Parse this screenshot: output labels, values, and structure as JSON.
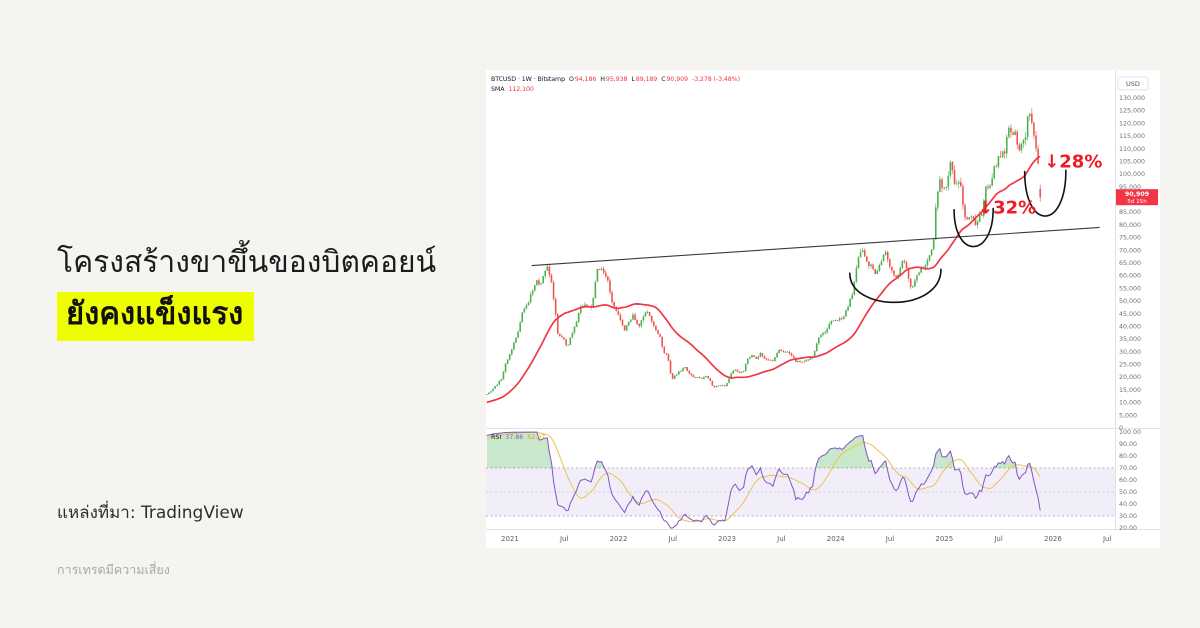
{
  "page": {
    "background": "#f5f4f1"
  },
  "left_panel": {
    "headline_line1": "โครงสร้างขาขึ้นของบิตคอยน์",
    "headline_line2": "ยังคงแข็งแรง",
    "highlight_color": "#ecfe00",
    "source_label": "แหล่งที่มา: TradingView",
    "disclaimer": "การเทรดมีความเสี่ยง"
  },
  "chart": {
    "header": {
      "symbol_line": "BTCUSD · 1W · Bitstamp",
      "o_label": "O",
      "o": "94,186",
      "h_label": "H",
      "h": "95,938",
      "l_label": "L",
      "l": "89,189",
      "c_label": "C",
      "c": "90,909",
      "change": "-3,278 (-3.48%)",
      "sma_label": "SMA",
      "sma_value": "112,100"
    },
    "rsi_legend": {
      "label": "RSI",
      "value1": "37.86",
      "value2": "52.97"
    }
  },
  "chart_data": {
    "type": "candlestick",
    "symbol": "BTCUSD",
    "interval": "1W",
    "exchange": "Bitstamp",
    "title": "BTCUSD weekly with SMA, trendline, drawdown arcs and RSI",
    "time_range": [
      2020.78,
      2026.57
    ],
    "price_axis": {
      "currency": "USD",
      "min": 0,
      "max": 133000,
      "step": 5000,
      "tick_labels": [
        "130,000",
        "125,000",
        "120,000",
        "115,000",
        "110,000",
        "105,000",
        "100,000",
        "95,000",
        "90,000",
        "85,000",
        "80,000",
        "75,000",
        "70,000",
        "65,000",
        "60,000",
        "55,000",
        "50,000",
        "45,000",
        "40,000",
        "35,000",
        "30,000",
        "25,000",
        "20,000",
        "15,000",
        "10,000",
        "5,000",
        "0"
      ]
    },
    "rsi_axis": {
      "min": 20,
      "max": 100,
      "tick_labels": [
        "100.00",
        "90.00",
        "80.00",
        "70.00",
        "60.00",
        "50.00",
        "40.00",
        "30.00",
        "20.00"
      ],
      "bands": [
        70,
        50,
        30
      ]
    },
    "time_axis": [
      {
        "label": "2021",
        "t": 2021
      },
      {
        "label": "Jul",
        "t": 2021.5
      },
      {
        "label": "2022",
        "t": 2022
      },
      {
        "label": "Jul",
        "t": 2022.5
      },
      {
        "label": "2023",
        "t": 2023
      },
      {
        "label": "Jul",
        "t": 2023.5
      },
      {
        "label": "2024",
        "t": 2024
      },
      {
        "label": "Jul",
        "t": 2024.5
      },
      {
        "label": "2025",
        "t": 2025
      },
      {
        "label": "Jul",
        "t": 2025.5
      },
      {
        "label": "2026",
        "t": 2026
      },
      {
        "label": "Jul",
        "t": 2026.5
      }
    ],
    "last_price": 90909,
    "last_bar": {
      "open": 94186,
      "high": 95938,
      "low": 89189,
      "close": 90909
    },
    "price_tag": {
      "price": "90,909",
      "countdown": "5d 15h"
    },
    "sma_period": 30,
    "rsi": {
      "period": 14,
      "ma_period": 14,
      "last": 37.86,
      "ma_last": 52.97
    },
    "price_anchors": [
      [
        2020.2,
        6900
      ],
      [
        2020.3,
        8800
      ],
      [
        2020.4,
        8700
      ],
      [
        2020.5,
        9150
      ],
      [
        2020.58,
        10700
      ],
      [
        2020.66,
        11500
      ],
      [
        2020.74,
        13000
      ],
      [
        2020.8,
        13600
      ],
      [
        2020.86,
        16200
      ],
      [
        2020.92,
        19200
      ],
      [
        2020.97,
        26500
      ],
      [
        2021.0,
        29000
      ],
      [
        2021.04,
        33900
      ],
      [
        2021.08,
        38200
      ],
      [
        2021.12,
        47000
      ],
      [
        2021.16,
        48500
      ],
      [
        2021.2,
        54000
      ],
      [
        2021.24,
        57500
      ],
      [
        2021.28,
        57000
      ],
      [
        2021.32,
        61500
      ],
      [
        2021.34,
        63500
      ],
      [
        2021.38,
        58000
      ],
      [
        2021.41,
        49000
      ],
      [
        2021.44,
        37000
      ],
      [
        2021.47,
        35600
      ],
      [
        2021.5,
        34700
      ],
      [
        2021.53,
        31800
      ],
      [
        2021.56,
        35700
      ],
      [
        2021.6,
        39900
      ],
      [
        2021.64,
        47000
      ],
      [
        2021.68,
        48800
      ],
      [
        2021.72,
        47100
      ],
      [
        2021.76,
        48100
      ],
      [
        2021.8,
        61300
      ],
      [
        2021.84,
        64300
      ],
      [
        2021.87,
        59700
      ],
      [
        2021.91,
        57300
      ],
      [
        2021.94,
        49300
      ],
      [
        2021.98,
        46300
      ],
      [
        2022.02,
        41700
      ],
      [
        2022.06,
        38500
      ],
      [
        2022.1,
        42400
      ],
      [
        2022.14,
        44500
      ],
      [
        2022.18,
        39700
      ],
      [
        2022.22,
        43200
      ],
      [
        2022.26,
        46800
      ],
      [
        2022.3,
        42300
      ],
      [
        2022.34,
        39500
      ],
      [
        2022.38,
        36000
      ],
      [
        2022.42,
        29500
      ],
      [
        2022.45,
        29000
      ],
      [
        2022.49,
        19000
      ],
      [
        2022.53,
        21200
      ],
      [
        2022.57,
        22500
      ],
      [
        2022.61,
        24400
      ],
      [
        2022.65,
        21300
      ],
      [
        2022.69,
        20000
      ],
      [
        2022.73,
        19800
      ],
      [
        2022.77,
        19600
      ],
      [
        2022.81,
        20300
      ],
      [
        2022.84,
        19100
      ],
      [
        2022.87,
        16300
      ],
      [
        2022.91,
        16500
      ],
      [
        2022.95,
        16900
      ],
      [
        2022.99,
        16600
      ],
      [
        2023.03,
        21100
      ],
      [
        2023.07,
        23300
      ],
      [
        2023.11,
        21800
      ],
      [
        2023.15,
        22400
      ],
      [
        2023.19,
        27500
      ],
      [
        2023.23,
        28500
      ],
      [
        2023.27,
        27600
      ],
      [
        2023.31,
        29500
      ],
      [
        2023.35,
        26900
      ],
      [
        2023.39,
        27200
      ],
      [
        2023.43,
        26500
      ],
      [
        2023.47,
        30700
      ],
      [
        2023.51,
        30300
      ],
      [
        2023.55,
        29900
      ],
      [
        2023.59,
        29200
      ],
      [
        2023.63,
        26100
      ],
      [
        2023.67,
        26000
      ],
      [
        2023.71,
        26600
      ],
      [
        2023.75,
        27000
      ],
      [
        2023.79,
        27900
      ],
      [
        2023.83,
        34200
      ],
      [
        2023.87,
        37100
      ],
      [
        2023.91,
        37700
      ],
      [
        2023.95,
        41300
      ],
      [
        2023.99,
        42600
      ],
      [
        2024.03,
        42900
      ],
      [
        2024.07,
        43100
      ],
      [
        2024.11,
        47700
      ],
      [
        2024.15,
        52100
      ],
      [
        2024.19,
        62500
      ],
      [
        2024.22,
        68300
      ],
      [
        2024.25,
        69400
      ],
      [
        2024.28,
        67200
      ],
      [
        2024.31,
        64000
      ],
      [
        2024.34,
        63800
      ],
      [
        2024.37,
        60600
      ],
      [
        2024.4,
        63900
      ],
      [
        2024.43,
        67000
      ],
      [
        2024.46,
        68500
      ],
      [
        2024.49,
        64900
      ],
      [
        2024.52,
        62700
      ],
      [
        2024.55,
        58200
      ],
      [
        2024.58,
        60800
      ],
      [
        2024.61,
        66800
      ],
      [
        2024.64,
        64200
      ],
      [
        2024.67,
        59400
      ],
      [
        2024.7,
        54000
      ],
      [
        2024.73,
        59100
      ],
      [
        2024.76,
        61000
      ],
      [
        2024.79,
        63200
      ],
      [
        2024.82,
        62900
      ],
      [
        2024.85,
        66600
      ],
      [
        2024.88,
        69400
      ],
      [
        2024.905,
        75600
      ],
      [
        2024.93,
        91000
      ],
      [
        2024.955,
        97500
      ],
      [
        2024.98,
        95800
      ],
      [
        2025.0,
        93400
      ],
      [
        2025.02,
        94500
      ],
      [
        2025.045,
        102100
      ],
      [
        2025.07,
        104800
      ],
      [
        2025.09,
        97700
      ],
      [
        2025.12,
        96100
      ],
      [
        2025.15,
        97500
      ],
      [
        2025.18,
        84300
      ],
      [
        2025.21,
        82900
      ],
      [
        2025.24,
        84400
      ],
      [
        2025.27,
        82500
      ],
      [
        2025.295,
        78400
      ],
      [
        2025.32,
        83800
      ],
      [
        2025.35,
        85000
      ],
      [
        2025.38,
        94700
      ],
      [
        2025.41,
        94000
      ],
      [
        2025.44,
        97000
      ],
      [
        2025.47,
        104000
      ],
      [
        2025.5,
        105600
      ],
      [
        2025.53,
        107200
      ],
      [
        2025.56,
        108900
      ],
      [
        2025.59,
        117500
      ],
      [
        2025.62,
        118000
      ],
      [
        2025.645,
        115800
      ],
      [
        2025.67,
        113200
      ],
      [
        2025.695,
        109200
      ],
      [
        2025.72,
        112500
      ],
      [
        2025.75,
        115800
      ],
      [
        2025.775,
        124400
      ],
      [
        2025.8,
        122000
      ],
      [
        2025.825,
        114500
      ],
      [
        2025.85,
        110100
      ],
      [
        2025.87,
        103000
      ],
      [
        2025.885,
        95800
      ],
      [
        2025.893,
        90909
      ]
    ],
    "overlays": {
      "trendline": [
        [
          2021.2,
          64000
        ],
        [
          2026.43,
          79000
        ]
      ],
      "arcs": [
        {
          "left": [
            2024.13,
            61000
          ],
          "bottom": [
            2024.55,
            49500
          ],
          "right": [
            2024.97,
            62500
          ]
        },
        {
          "left": [
            2025.09,
            86000
          ],
          "bottom": [
            2025.27,
            71500
          ],
          "right": [
            2025.45,
            86500
          ]
        },
        {
          "left": [
            2025.74,
            101000
          ],
          "bottom": [
            2025.93,
            83500
          ],
          "right": [
            2026.12,
            101500
          ]
        }
      ],
      "annotations": [
        {
          "text": "↓32%",
          "x": 2025.31,
          "price": 84500
        },
        {
          "text": "↓28%",
          "x": 2025.92,
          "price": 102600
        }
      ]
    },
    "style": {
      "up": "#4caf50",
      "down": "#ef5350",
      "sma": "#f23645",
      "trendline": "#3a3a3a",
      "arc": "#111111",
      "annotation": "#ed1b24",
      "price_tag_bg": "#f23645",
      "price_tag_text": "#ffffff",
      "rsi_line": "#7e57c2",
      "rsi_ma": "#edc24c",
      "rsi_band": "rgba(126,87,194,0.10)",
      "rsi_fill": "rgba(76,175,80,0.30)",
      "axis_text": "#6b7077",
      "divider": "#e1e3ea"
    }
  }
}
